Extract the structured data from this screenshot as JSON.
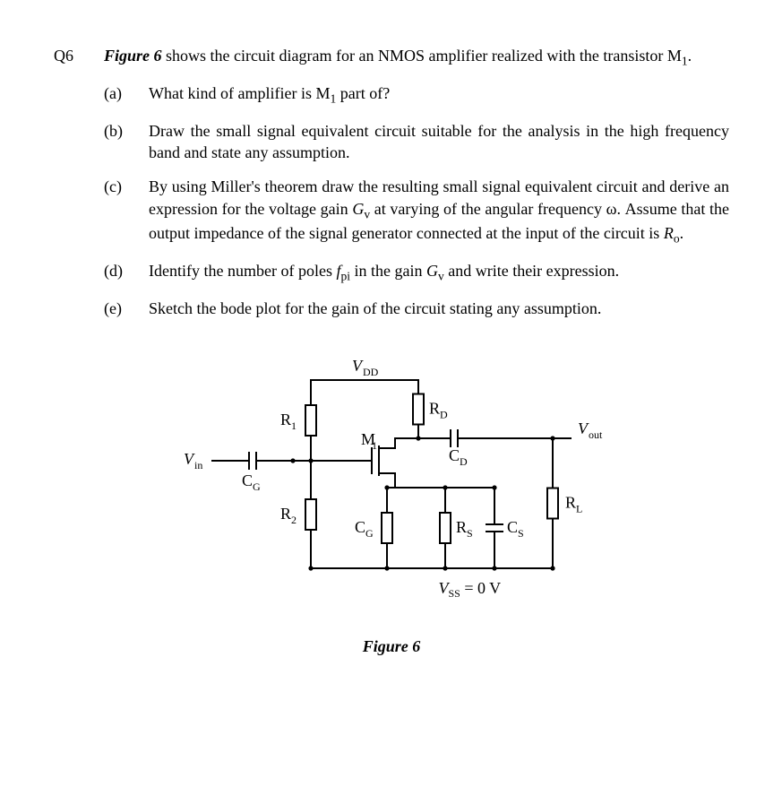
{
  "question_number": "Q6",
  "intro_pre": "Figure 6",
  "intro_rest": " shows the circuit diagram for an NMOS amplifier realized with the transistor M",
  "intro_sub": "1",
  "intro_end": ".",
  "parts": {
    "a": {
      "label": "(a)",
      "text_pre": "What kind of amplifier is M",
      "sub": "1",
      "text_post": " part of?"
    },
    "b": {
      "label": "(b)",
      "text": "Draw the small signal equivalent circuit suitable for the analysis in the high frequency band and state any assumption."
    },
    "c": {
      "label": "(c)",
      "text_pre": "By using Miller's theorem draw the resulting small signal equivalent circuit and derive an expression for the voltage gain ",
      "sym1": "G",
      "sub1": "v",
      "mid1": " at varying of the angular frequency ω. Assume that the output impedance of the signal generator connected at the input of the circuit is ",
      "sym2": "R",
      "sub2": "o",
      "end": "."
    },
    "d": {
      "label": "(d)",
      "text_pre": "Identify the number of poles ",
      "sym1": "f",
      "sub1": "pi",
      "mid": " in the gain ",
      "sym2": "G",
      "sub2": "v",
      "end": " and write their expression."
    },
    "e": {
      "label": "(e)",
      "text": "Sketch the bode plot for the gain of the circuit stating any assumption."
    }
  },
  "circuit": {
    "stroke": "#000000",
    "stroke_width": 2,
    "font_size_label": 18,
    "font_size_sub": 12,
    "labels": {
      "VDD": "V",
      "VDD_sub": "DD",
      "R1": "R",
      "R1_sub": "1",
      "R2": "R",
      "R2_sub": "2",
      "RD": "R",
      "RD_sub": "D",
      "RS": "R",
      "RS_sub": "S",
      "RL": "R",
      "RL_sub": "L",
      "M1": "M",
      "M1_sub": "1",
      "CG": "C",
      "CG_sub": "G",
      "CG2": "C",
      "CG2_sub": "G",
      "CD": "C",
      "CD_sub": "D",
      "CS": "C",
      "CS_sub": "S",
      "Vin": "V",
      "Vin_sub": "in",
      "Vout": "V",
      "Vout_sub": "out",
      "VSS": "V",
      "VSS_sub": "SS",
      "VSS_eq": " = 0 V"
    }
  },
  "figure_caption": "Figure 6"
}
